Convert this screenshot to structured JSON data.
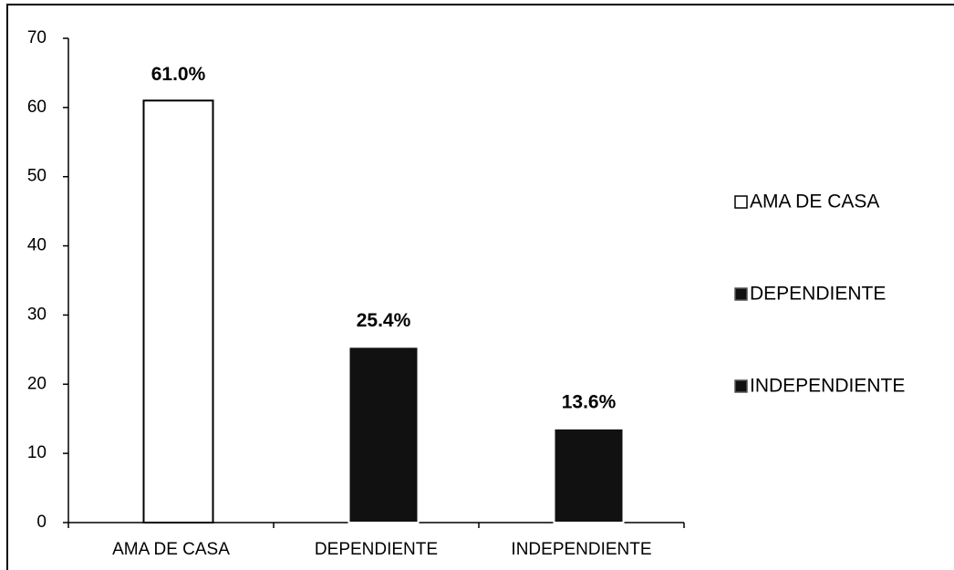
{
  "chart_data": {
    "type": "bar",
    "categories": [
      "AMA DE CASA",
      "DEPENDIENTE",
      "INDEPENDIENTE"
    ],
    "values": [
      61.0,
      25.4,
      13.6
    ],
    "value_labels": [
      "61.0%",
      "25.4%",
      "13.6%"
    ],
    "colors": [
      "#ffffff",
      "#111111",
      "#111111"
    ],
    "ylim": [
      0,
      70
    ],
    "yticks": [
      0,
      10,
      20,
      30,
      40,
      50,
      60,
      70
    ],
    "grid": false,
    "legend": "right"
  }
}
